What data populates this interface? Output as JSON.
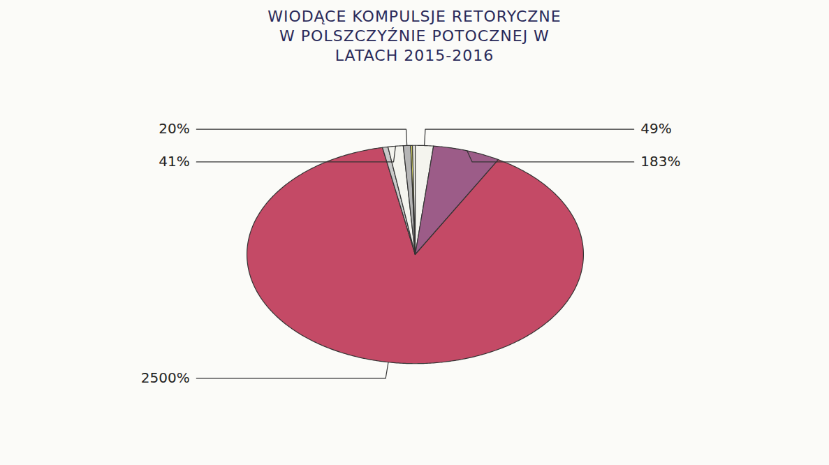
{
  "chart_data": {
    "type": "pie",
    "title": "WIODĄCE KOMPULSJE RETORYCZNE W POLSZCZYŹNIE POTOCZNEJ W LATACH 2015-2016",
    "values": [
      49,
      183,
      2500,
      15,
      41,
      20,
      5,
      7
    ],
    "value_labels": [
      "49%",
      "183%",
      "2500%",
      null,
      "41%",
      "20%",
      null,
      null
    ],
    "colors": [
      "#f4f4ee",
      "#9c5c88",
      "#c44a66",
      "#c9c9c9",
      "#f4f4ee",
      "#b5b5b5",
      "#e9e86a",
      "#f4f4ee"
    ],
    "data_labels": true
  }
}
